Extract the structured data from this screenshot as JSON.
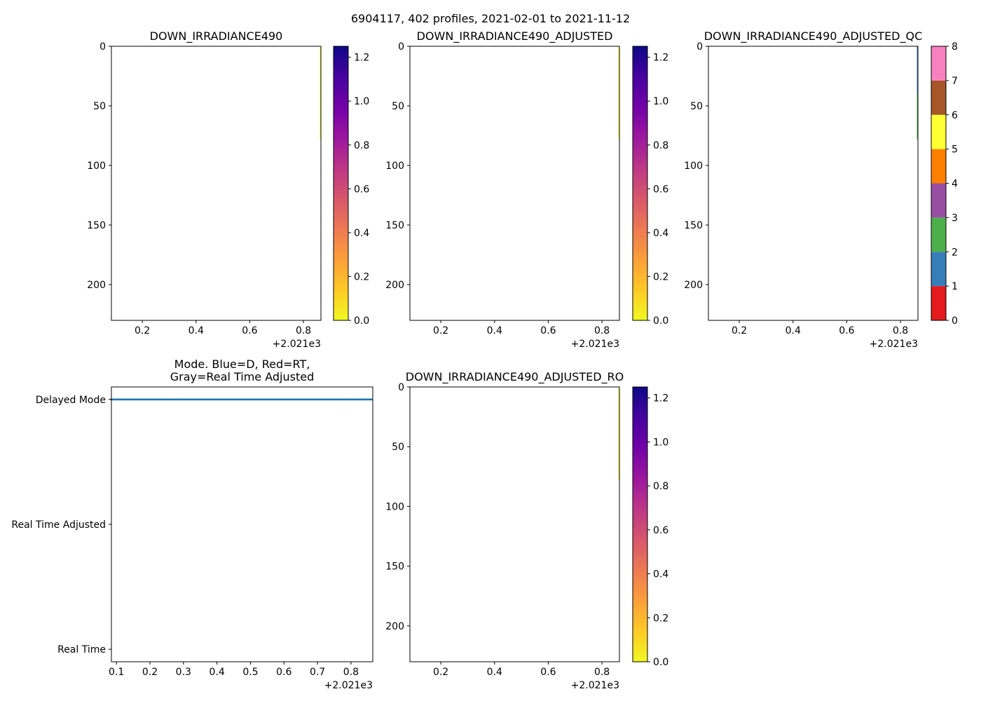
{
  "figure_title": "6904117, 402 profiles, 2021-02-01 to 2021-11-12",
  "colors": {
    "plasma_stops": [
      "#f0f921",
      "#fdca26",
      "#fb9f3a",
      "#ed7953",
      "#d8576b",
      "#bd3786",
      "#9c179e",
      "#7201a8",
      "#46039f",
      "#0d0887"
    ],
    "qc_classes": [
      "#e41a1c",
      "#377eb8",
      "#4daf4a",
      "#984ea3",
      "#ff7f00",
      "#ffff33",
      "#a65628",
      "#f781bf",
      "#999999"
    ],
    "mode_series": "#1f77b4"
  },
  "chart_data": [
    {
      "id": "p1",
      "type": "heatmap",
      "title": "DOWN_IRRADIANCE490",
      "x_ticks": [
        "0.2",
        "0.4",
        "0.6",
        "0.8"
      ],
      "x_tick_values": [
        0.2,
        0.4,
        0.6,
        0.8
      ],
      "x_offset_label": "+2.021e3",
      "xlim": [
        0.085,
        0.865
      ],
      "y_ticks": [
        "0",
        "50",
        "100",
        "150",
        "200"
      ],
      "y_tick_values": [
        0,
        50,
        100,
        150,
        200
      ],
      "ylim": [
        230,
        0
      ],
      "data_strip": {
        "x": 0.862,
        "y_from": 0,
        "y_to": 78
      },
      "colorbar": {
        "kind": "continuous",
        "cmap": "plasma_r",
        "range": [
          0,
          1.25
        ],
        "ticks": [
          "0.0",
          "0.2",
          "0.4",
          "0.6",
          "0.8",
          "1.0",
          "1.2"
        ],
        "tick_values": [
          0,
          0.2,
          0.4,
          0.6,
          0.8,
          1.0,
          1.2
        ]
      }
    },
    {
      "id": "p2",
      "type": "heatmap",
      "title": "DOWN_IRRADIANCE490_ADJUSTED",
      "x_ticks": [
        "0.2",
        "0.4",
        "0.6",
        "0.8"
      ],
      "x_tick_values": [
        0.2,
        0.4,
        0.6,
        0.8
      ],
      "x_offset_label": "+2.021e3",
      "xlim": [
        0.085,
        0.865
      ],
      "y_ticks": [
        "0",
        "50",
        "100",
        "150",
        "200"
      ],
      "y_tick_values": [
        0,
        50,
        100,
        150,
        200
      ],
      "ylim": [
        230,
        0
      ],
      "data_strip": {
        "x": 0.862,
        "y_from": 0,
        "y_to": 78
      },
      "colorbar": {
        "kind": "continuous",
        "cmap": "plasma_r",
        "range": [
          0,
          1.25
        ],
        "ticks": [
          "0.0",
          "0.2",
          "0.4",
          "0.6",
          "0.8",
          "1.0",
          "1.2"
        ],
        "tick_values": [
          0,
          0.2,
          0.4,
          0.6,
          0.8,
          1.0,
          1.2
        ]
      }
    },
    {
      "id": "p3",
      "type": "heatmap",
      "title": "DOWN_IRRADIANCE490_ADJUSTED_QC",
      "x_ticks": [
        "0.2",
        "0.4",
        "0.6",
        "0.8"
      ],
      "x_tick_values": [
        0.2,
        0.4,
        0.6,
        0.8
      ],
      "x_offset_label": "+2.021e3",
      "xlim": [
        0.085,
        0.865
      ],
      "y_ticks": [
        "0",
        "50",
        "100",
        "150",
        "200"
      ],
      "y_tick_values": [
        0,
        50,
        100,
        150,
        200
      ],
      "ylim": [
        230,
        0
      ],
      "data_strip": {
        "x": 0.862,
        "y_from": 0,
        "y_to": 78,
        "segments": [
          {
            "y_from": 0,
            "y_to": 40,
            "qc": 1
          },
          {
            "y_from": 40,
            "y_to": 78,
            "qc": 2
          }
        ]
      },
      "colorbar": {
        "kind": "discrete",
        "cmap": "Set1",
        "range": [
          0,
          8
        ],
        "ticks": [
          "0",
          "1",
          "2",
          "3",
          "4",
          "5",
          "6",
          "7",
          "8"
        ],
        "tick_values": [
          0,
          1,
          2,
          3,
          4,
          5,
          6,
          7,
          8
        ]
      }
    },
    {
      "id": "p4",
      "type": "scatter",
      "title_lines": [
        "Mode. Blue=D, Red=RT,",
        "Gray=Real Time Adjusted"
      ],
      "x_ticks": [
        "0.1",
        "0.2",
        "0.3",
        "0.4",
        "0.5",
        "0.6",
        "0.7",
        "0.8"
      ],
      "x_tick_values": [
        0.1,
        0.2,
        0.3,
        0.4,
        0.5,
        0.6,
        0.7,
        0.8
      ],
      "x_offset_label": "+2.021e3",
      "xlim": [
        0.085,
        0.865
      ],
      "y_ticks": [
        "Delayed Mode",
        "Real Time Adjusted",
        "Real Time"
      ],
      "y_tick_values": [
        2,
        1,
        0
      ],
      "ylim": [
        -0.1,
        2.1
      ],
      "series": [
        {
          "name": "Delayed Mode",
          "mode_value": 2,
          "n_profiles": 402,
          "x_start": 0.085,
          "x_end": 0.862
        }
      ]
    },
    {
      "id": "p5",
      "type": "heatmap",
      "title": "DOWN_IRRADIANCE490_ADJUSTED_RO",
      "x_ticks": [
        "0.2",
        "0.4",
        "0.6",
        "0.8"
      ],
      "x_tick_values": [
        0.2,
        0.4,
        0.6,
        0.8
      ],
      "x_offset_label": "+2.021e3",
      "xlim": [
        0.085,
        0.865
      ],
      "y_ticks": [
        "0",
        "50",
        "100",
        "150",
        "200"
      ],
      "y_tick_values": [
        0,
        50,
        100,
        150,
        200
      ],
      "ylim": [
        230,
        0
      ],
      "data_strip": {
        "x": 0.862,
        "y_from": 0,
        "y_to": 78
      },
      "colorbar": {
        "kind": "continuous",
        "cmap": "plasma_r",
        "range": [
          0,
          1.25
        ],
        "ticks": [
          "0.0",
          "0.2",
          "0.4",
          "0.6",
          "0.8",
          "1.0",
          "1.2"
        ],
        "tick_values": [
          0,
          0.2,
          0.4,
          0.6,
          0.8,
          1.0,
          1.2
        ]
      }
    }
  ]
}
